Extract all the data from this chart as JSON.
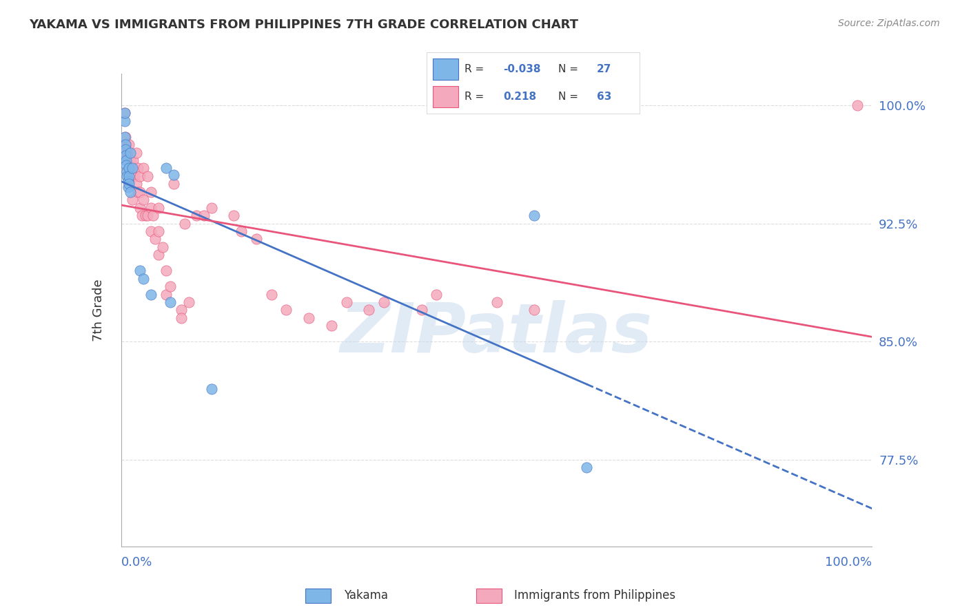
{
  "title": "YAKAMA VS IMMIGRANTS FROM PHILIPPINES 7TH GRADE CORRELATION CHART",
  "source": "Source: ZipAtlas.com",
  "ylabel": "7th Grade",
  "yticks": [
    0.775,
    0.85,
    0.925,
    1.0
  ],
  "ytick_labels": [
    "77.5%",
    "85.0%",
    "92.5%",
    "100.0%"
  ],
  "xmin": 0.0,
  "xmax": 1.0,
  "ymin": 0.72,
  "ymax": 1.02,
  "series1_name": "Yakama",
  "series1_color": "#7EB6E8",
  "series1_R": -0.038,
  "series1_N": 27,
  "series1_line_color": "#4472C4",
  "series2_name": "Immigrants from Philippines",
  "series2_color": "#F4AABC",
  "series2_R": 0.218,
  "series2_N": 63,
  "series2_line_color": "#E8547A",
  "background_color": "#FFFFFF",
  "grid_color": "#DDDDDD",
  "yakama_x": [
    0.005,
    0.005,
    0.005,
    0.006,
    0.006,
    0.006,
    0.007,
    0.007,
    0.008,
    0.008,
    0.009,
    0.009,
    0.01,
    0.01,
    0.01,
    0.012,
    0.012,
    0.015,
    0.025,
    0.03,
    0.04,
    0.06,
    0.065,
    0.07,
    0.12,
    0.55,
    0.62
  ],
  "yakama_y": [
    0.99,
    0.995,
    0.98,
    0.975,
    0.972,
    0.968,
    0.965,
    0.962,
    0.958,
    0.955,
    0.952,
    0.948,
    0.96,
    0.955,
    0.95,
    0.945,
    0.97,
    0.96,
    0.895,
    0.89,
    0.88,
    0.96,
    0.875,
    0.956,
    0.82,
    0.93,
    0.77
  ],
  "phil_x": [
    0.003,
    0.004,
    0.005,
    0.006,
    0.007,
    0.008,
    0.009,
    0.01,
    0.01,
    0.012,
    0.013,
    0.015,
    0.015,
    0.016,
    0.018,
    0.02,
    0.02,
    0.022,
    0.022,
    0.025,
    0.025,
    0.025,
    0.028,
    0.03,
    0.03,
    0.032,
    0.035,
    0.035,
    0.04,
    0.04,
    0.04,
    0.042,
    0.045,
    0.05,
    0.05,
    0.05,
    0.055,
    0.06,
    0.06,
    0.065,
    0.07,
    0.08,
    0.08,
    0.085,
    0.09,
    0.1,
    0.11,
    0.12,
    0.15,
    0.16,
    0.18,
    0.2,
    0.22,
    0.25,
    0.28,
    0.3,
    0.33,
    0.35,
    0.4,
    0.42,
    0.5,
    0.55,
    0.98
  ],
  "phil_y": [
    0.97,
    0.97,
    0.995,
    0.98,
    0.975,
    0.968,
    0.97,
    0.975,
    0.955,
    0.965,
    0.96,
    0.955,
    0.94,
    0.965,
    0.955,
    0.97,
    0.95,
    0.945,
    0.96,
    0.955,
    0.945,
    0.935,
    0.93,
    0.96,
    0.94,
    0.93,
    0.955,
    0.93,
    0.945,
    0.935,
    0.92,
    0.93,
    0.915,
    0.935,
    0.92,
    0.905,
    0.91,
    0.895,
    0.88,
    0.885,
    0.95,
    0.87,
    0.865,
    0.925,
    0.875,
    0.93,
    0.93,
    0.935,
    0.93,
    0.92,
    0.915,
    0.88,
    0.87,
    0.865,
    0.86,
    0.875,
    0.87,
    0.875,
    0.87,
    0.88,
    0.875,
    0.87,
    1.0
  ]
}
